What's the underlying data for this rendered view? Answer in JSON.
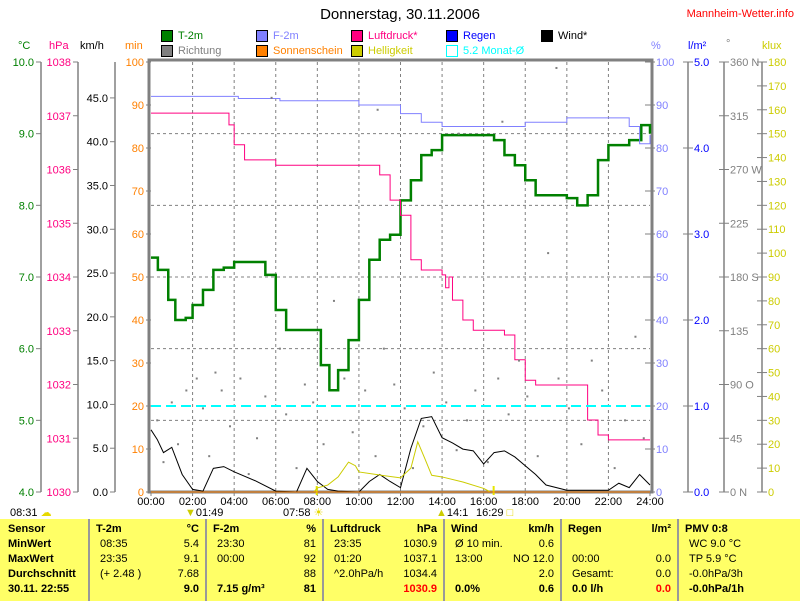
{
  "title": "Donnerstag, 30.11.2006",
  "site": "Mannheim-Wetter.info",
  "colors": {
    "temp": "#008000",
    "humidity": "#8080ff",
    "pressure": "#ff0080",
    "rain": "#0000ff",
    "wind": "#000000",
    "direction": "#808080",
    "sunshine": "#ff8000",
    "brightness": "#cccc00",
    "month_avg": "#00ffff",
    "min_axis": "#ff8000"
  },
  "legend": [
    {
      "label": "T-2m",
      "color": "#008000"
    },
    {
      "label": "F-2m",
      "color": "#8080ff"
    },
    {
      "label": "Luftdruck*",
      "color": "#ff0080"
    },
    {
      "label": "Regen",
      "color": "#0000ff"
    },
    {
      "label": "Wind*",
      "color": "#000000"
    },
    {
      "label": "Richtung",
      "color": "#808080"
    },
    {
      "label": "Sonnenschein",
      "color": "#ff8000"
    },
    {
      "label": "Helligkeit",
      "color": "#cccc00"
    },
    {
      "label": "5.2 Monat-Ø",
      "color": "#00ffff",
      "hollow": true
    }
  ],
  "units": {
    "celsius": "°C",
    "hpa": "hPa",
    "kmh": "km/h",
    "min": "min",
    "percent": "%",
    "rain": "l/m²",
    "degree": "°",
    "klux": "klux"
  },
  "sun_moon": {
    "left_time": "08:31",
    "moon_set": "01:49",
    "sunrise": "07:58",
    "moon_rise": "14:1",
    "sunset": "16:29"
  },
  "chart_data": {
    "type": "line",
    "title": "Donnerstag, 30.11.2006",
    "x_range_hours": [
      0,
      24
    ],
    "x_ticks": [
      "00:00",
      "02:00",
      "04:00",
      "06:00",
      "08:00",
      "10:00",
      "12:00",
      "14:00",
      "16:00",
      "18:00",
      "20:00",
      "22:00",
      "24:00"
    ],
    "axes": {
      "celsius": {
        "range": [
          4,
          10
        ],
        "ticks": [
          "4.0",
          "5.0",
          "6.0",
          "7.0",
          "8.0",
          "9.0",
          "10.0"
        ]
      },
      "hpa": {
        "range": [
          1030,
          1038
        ],
        "ticks": [
          "1030",
          "1031",
          "1032",
          "1033",
          "1034",
          "1035",
          "1036",
          "1037",
          "1038"
        ]
      },
      "kmh": {
        "range": [
          0,
          49.1
        ],
        "ticks": [
          "0.0",
          "5.0",
          "10.0",
          "15.0",
          "20.0",
          "25.0",
          "30.0",
          "35.0",
          "40.0",
          "45.0"
        ]
      },
      "min": {
        "range": [
          0,
          100
        ],
        "ticks": [
          "0",
          "10",
          "20",
          "30",
          "40",
          "50",
          "60",
          "70",
          "80",
          "90",
          "100"
        ]
      },
      "percent": {
        "range": [
          0,
          100
        ],
        "ticks": [
          "0",
          "10",
          "20",
          "30",
          "40",
          "50",
          "60",
          "70",
          "80",
          "90",
          "100"
        ]
      },
      "rain": {
        "range": [
          0,
          5
        ],
        "ticks": [
          "0.0",
          "1.0",
          "2.0",
          "3.0",
          "4.0",
          "5.0"
        ]
      },
      "degree": {
        "range": [
          0,
          360
        ],
        "ticks": [
          "0   N",
          "45",
          "90  O",
          "135",
          "180 S",
          "225",
          "270 W",
          "315",
          "360 N"
        ]
      },
      "klux": {
        "range": [
          0,
          180
        ],
        "ticks": [
          "0",
          "10",
          "20",
          "30",
          "40",
          "50",
          "60",
          "70",
          "80",
          "90",
          "100",
          "110",
          "120",
          "130",
          "140",
          "150",
          "160",
          "170",
          "180"
        ]
      }
    },
    "series": [
      {
        "name": "T-2m",
        "axis": "celsius",
        "points": [
          [
            0,
            7.27
          ],
          [
            0.33,
            7.1
          ],
          [
            0.83,
            6.68
          ],
          [
            1.17,
            6.4
          ],
          [
            1.67,
            6.43
          ],
          [
            2,
            6.61
          ],
          [
            2.5,
            6.82
          ],
          [
            3,
            7.1
          ],
          [
            3.5,
            7.13
          ],
          [
            4,
            7.21
          ],
          [
            5,
            7.21
          ],
          [
            5.5,
            7.03
          ],
          [
            6,
            6.54
          ],
          [
            6.5,
            6.26
          ],
          [
            8,
            6.26
          ],
          [
            8.17,
            5.77
          ],
          [
            8.58,
            5.42
          ],
          [
            9,
            5.7
          ],
          [
            9.5,
            6.12
          ],
          [
            10,
            6.68
          ],
          [
            10.5,
            7.24
          ],
          [
            11,
            7.52
          ],
          [
            11.5,
            7.59
          ],
          [
            12,
            8.07
          ],
          [
            12.5,
            8.35
          ],
          [
            13,
            8.7
          ],
          [
            13.5,
            8.77
          ],
          [
            14,
            8.98
          ],
          [
            16,
            8.98
          ],
          [
            16.5,
            8.91
          ],
          [
            17,
            8.7
          ],
          [
            17.5,
            8.56
          ],
          [
            18,
            8.35
          ],
          [
            18.5,
            8.14
          ],
          [
            20,
            8.1
          ],
          [
            20.5,
            8.0
          ],
          [
            21,
            8.14
          ],
          [
            21.5,
            8.63
          ],
          [
            22,
            8.84
          ],
          [
            23,
            8.91
          ],
          [
            23.58,
            9.12
          ],
          [
            24,
            9.0
          ]
        ]
      },
      {
        "name": "F-2m",
        "axis": "percent",
        "points": [
          [
            0,
            92
          ],
          [
            4,
            92
          ],
          [
            4.2,
            91.5
          ],
          [
            6,
            91.5
          ],
          [
            6.2,
            91
          ],
          [
            8,
            91
          ],
          [
            10,
            90
          ],
          [
            12,
            88
          ],
          [
            13,
            86
          ],
          [
            14,
            85
          ],
          [
            16,
            85
          ],
          [
            18,
            86
          ],
          [
            20,
            87
          ],
          [
            22,
            87
          ],
          [
            23,
            85
          ],
          [
            23.5,
            81
          ],
          [
            24,
            83
          ]
        ]
      },
      {
        "name": "Luftdruck*",
        "axis": "hpa",
        "points": [
          [
            0,
            1037.05
          ],
          [
            3.5,
            1037.05
          ],
          [
            3.75,
            1036.83
          ],
          [
            4,
            1036.46
          ],
          [
            4.5,
            1036.18
          ],
          [
            6,
            1036.08
          ],
          [
            10,
            1036.08
          ],
          [
            11,
            1035.9
          ],
          [
            11.5,
            1035.43
          ],
          [
            12,
            1035.15
          ],
          [
            12.5,
            1034.32
          ],
          [
            13,
            1034.13
          ],
          [
            14,
            1034.04
          ],
          [
            14.17,
            1033.8
          ],
          [
            14.33,
            1034.0
          ],
          [
            14.5,
            1033.57
          ],
          [
            15,
            1033.2
          ],
          [
            15.5,
            1033.01
          ],
          [
            17,
            1032.92
          ],
          [
            17.5,
            1032.46
          ],
          [
            18,
            1032.08
          ],
          [
            18.5,
            1031.99
          ],
          [
            20.5,
            1031.99
          ],
          [
            21,
            1031.34
          ],
          [
            21.5,
            1031.06
          ],
          [
            22,
            1030.97
          ],
          [
            24,
            1030.97
          ]
        ]
      },
      {
        "name": "Wind*",
        "axis": "kmh",
        "points": [
          [
            0,
            7.1
          ],
          [
            0.3,
            6
          ],
          [
            0.6,
            4.5
          ],
          [
            1,
            5.1
          ],
          [
            1.5,
            2
          ],
          [
            2,
            0.3
          ],
          [
            2.5,
            0.1
          ],
          [
            3,
            2.7
          ],
          [
            3.5,
            2.9
          ],
          [
            4,
            2.3
          ],
          [
            5,
            1.3
          ],
          [
            6,
            0.1
          ],
          [
            7,
            0
          ],
          [
            7.5,
            2.7
          ],
          [
            8,
            1.2
          ],
          [
            8.5,
            0.3
          ],
          [
            9,
            0.1
          ],
          [
            10,
            0
          ],
          [
            10.5,
            1.2
          ],
          [
            11,
            2
          ],
          [
            11.5,
            1.2
          ],
          [
            12,
            0.5
          ],
          [
            12.5,
            5
          ],
          [
            13,
            8.4
          ],
          [
            13.5,
            8.6
          ],
          [
            14,
            6.2
          ],
          [
            14.5,
            5.6
          ],
          [
            15,
            4.9
          ],
          [
            15.5,
            4.7
          ],
          [
            16,
            3.2
          ],
          [
            16.5,
            4.5
          ],
          [
            17,
            4.7
          ],
          [
            17.5,
            4
          ],
          [
            18,
            3
          ],
          [
            18.5,
            2
          ],
          [
            19,
            0.8
          ],
          [
            20,
            0.2
          ],
          [
            22,
            0.2
          ],
          [
            22.5,
            1
          ],
          [
            23,
            0.5
          ],
          [
            23.5,
            2
          ],
          [
            24,
            0.8
          ]
        ]
      },
      {
        "name": "Helligkeit",
        "axis": "klux",
        "points": [
          [
            7.83,
            0
          ],
          [
            8,
            1.7
          ],
          [
            8.5,
            2.9
          ],
          [
            9,
            6.3
          ],
          [
            9.5,
            12.5
          ],
          [
            9.83,
            11
          ],
          [
            10,
            8.4
          ],
          [
            11,
            7.1
          ],
          [
            12,
            5.9
          ],
          [
            12.5,
            10
          ],
          [
            12.83,
            21
          ],
          [
            13.17,
            14
          ],
          [
            13.5,
            7
          ],
          [
            14,
            6.3
          ],
          [
            15,
            4.2
          ],
          [
            16,
            1.5
          ],
          [
            16.33,
            0
          ]
        ]
      },
      {
        "name": "Sonnenschein",
        "axis": "min",
        "points": [
          [
            0,
            0
          ],
          [
            24,
            0
          ]
        ]
      },
      {
        "name": "Regen",
        "axis": "rain",
        "points": []
      },
      {
        "name": "5.2 Monat-Ø",
        "axis": "rain",
        "value": 1.0
      },
      {
        "name": "Richtung",
        "axis": "degree",
        "points": [
          [
            0.3,
            60
          ],
          [
            0.6,
            25
          ],
          [
            1,
            75
          ],
          [
            1.3,
            40
          ],
          [
            1.7,
            85
          ],
          [
            2.2,
            95
          ],
          [
            2.5,
            70
          ],
          [
            2.8,
            30
          ],
          [
            3.1,
            100
          ],
          [
            3.4,
            85
          ],
          [
            3.8,
            55
          ],
          [
            4.3,
            95
          ],
          [
            4.7,
            15
          ],
          [
            5.1,
            45
          ],
          [
            5.5,
            80
          ],
          [
            6.2,
            120
          ],
          [
            6.5,
            65
          ],
          [
            7,
            20
          ],
          [
            7.4,
            90
          ],
          [
            7.8,
            75
          ],
          [
            8.3,
            40
          ],
          [
            8.8,
            160
          ],
          [
            9.3,
            95
          ],
          [
            9.7,
            50
          ],
          [
            10.3,
            85
          ],
          [
            10.8,
            30
          ],
          [
            11.2,
            120
          ],
          [
            11.7,
            90
          ],
          [
            12.2,
            70
          ],
          [
            12.6,
            20
          ],
          [
            13.1,
            55
          ],
          [
            13.6,
            100
          ],
          [
            14.2,
            75
          ],
          [
            14.7,
            35
          ],
          [
            15.2,
            60
          ],
          [
            15.6,
            85
          ],
          [
            16.2,
            25
          ],
          [
            16.7,
            95
          ],
          [
            17.2,
            65
          ],
          [
            17.7,
            110
          ],
          [
            18.1,
            80
          ],
          [
            18.6,
            30
          ],
          [
            19.1,
            200
          ],
          [
            19.6,
            95
          ],
          [
            20.1,
            70
          ],
          [
            20.7,
            40
          ],
          [
            21.2,
            110
          ],
          [
            21.7,
            85
          ],
          [
            22.3,
            20
          ],
          [
            22.8,
            60
          ],
          [
            23.3,
            130
          ],
          [
            23.7,
            45
          ],
          [
            5.8,
            330
          ],
          [
            10.9,
            320
          ],
          [
            16.9,
            310
          ],
          [
            19.5,
            355
          ],
          [
            14.8,
            300
          ]
        ]
      }
    ]
  },
  "table": {
    "columns": [
      {
        "head": "Sensor",
        "unit": "",
        "rows": [
          [
            "MinWert",
            ""
          ],
          [
            "MaxWert",
            ""
          ],
          [
            "Durchschnitt",
            ""
          ],
          [
            "30.11. 22:55",
            ""
          ]
        ]
      },
      {
        "head": "T-2m",
        "unit": "°C",
        "rows": [
          [
            "08:35",
            "5.4"
          ],
          [
            "23:35",
            "9.1"
          ],
          [
            "(+ 2.48 )",
            "7.68"
          ],
          [
            "",
            "9.0"
          ]
        ]
      },
      {
        "head": "F-2m",
        "unit": "%",
        "rows": [
          [
            "23:30",
            "81"
          ],
          [
            "00:00",
            "92"
          ],
          [
            "",
            "88"
          ],
          [
            "7.15 g/m³",
            "81"
          ]
        ]
      },
      {
        "head": "Luftdruck",
        "unit": "hPa",
        "rows": [
          [
            "23:35",
            "1030.9"
          ],
          [
            "01:20",
            "1037.1"
          ],
          [
            "^2.0hPa/h",
            "1034.4"
          ],
          [
            "",
            "1030.9"
          ]
        ]
      },
      {
        "head": "Wind",
        "unit": "km/h",
        "rows": [
          [
            "Ø 10 min.",
            "0.6"
          ],
          [
            "13:00",
            "NO 12.0"
          ],
          [
            "",
            "2.0"
          ],
          [
            "0.0%",
            "0.6"
          ]
        ]
      },
      {
        "head": "Regen",
        "unit": "l/m²",
        "rows": [
          [
            "",
            ""
          ],
          [
            "00:00",
            "0.0"
          ],
          [
            "Gesamt:",
            "0.0"
          ],
          [
            "0.0 l/h",
            "0.0"
          ]
        ]
      },
      {
        "head": "PMV 0:8",
        "unit": "",
        "rows": [
          [
            "WC 9.0 °C",
            ""
          ],
          [
            "TP 5.9 °C",
            ""
          ],
          [
            "-0.0hPa/3h",
            ""
          ],
          [
            "-0.0hPa/1h",
            ""
          ]
        ]
      }
    ]
  }
}
